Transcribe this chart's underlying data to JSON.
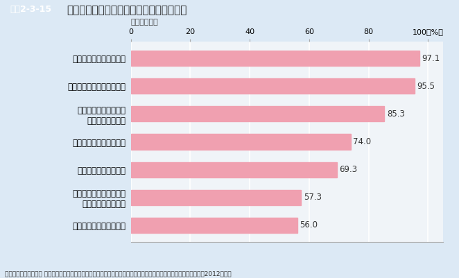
{
  "title": "パワーハラスメントが企業にもたらす損失",
  "title_tag": "図表2-3-15",
  "subtitle": "（複数回答）",
  "categories": [
    "企業イメージが悪化する",
    "訴訟による損害賠償など\n金銭的負担が生じる",
    "人材が流出してしまう",
    "職場の生産性が低下する",
    "従業員が十分に能力が\n発揮できなくなる",
    "従業員の心の健康を害する",
    "職場の雰囲気が悪くなる"
  ],
  "values": [
    56.0,
    57.3,
    69.3,
    74.0,
    85.3,
    95.5,
    97.1
  ],
  "bar_color": "#f0a0b0",
  "bar_edge_color": "#f0a0b0",
  "value_labels": [
    "56.0",
    "57.3",
    "69.3",
    "74.0",
    "85.3",
    "95.5",
    "97.1"
  ],
  "xlim": [
    0,
    100
  ],
  "xticks": [
    0,
    20,
    40,
    60,
    80,
    100
  ],
  "xlabel_unit": "100（%）",
  "footer": "資料：厚生労働省委託 東京海上日動リスクコンサルティング（株）「職場のパワーハラスメントに関する実態調査」（2012年度）",
  "bg_color": "#dce9f5",
  "header_bg": "#2a6fa8",
  "tag_bg": "#2a6fa8",
  "plot_bg": "#f0f4f8",
  "grid_color": "#ffffff"
}
